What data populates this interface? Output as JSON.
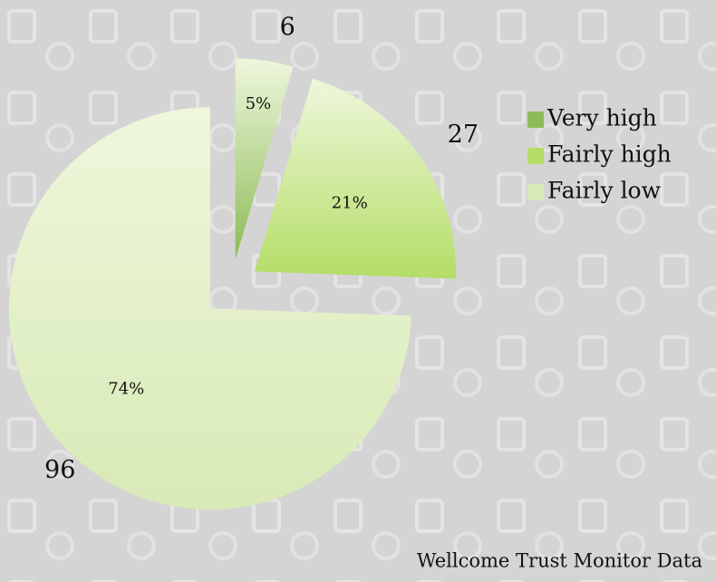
{
  "chart_data": {
    "type": "pie",
    "categories": [
      "Very high",
      "Fairly high",
      "Fairly low"
    ],
    "values": [
      6,
      27,
      96
    ],
    "share_labels": [
      "5%",
      "21%",
      "74%"
    ],
    "colors": [
      "#8dbb57",
      "#b4dd66",
      "#d8eab6"
    ],
    "legend": "right",
    "source": "Wellcome Trust Monitor Data"
  }
}
